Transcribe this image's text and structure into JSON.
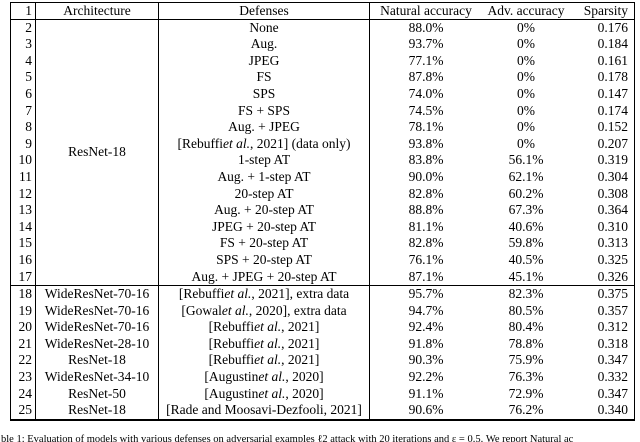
{
  "colors": {
    "text": "#000000",
    "background": "#ffffff",
    "border": "#000000"
  },
  "table": {
    "header": {
      "num": "1",
      "architecture": "Architecture",
      "defenses": "Defenses",
      "natural_accuracy": "Natural accuracy",
      "adv_accuracy": "Adv. accuracy",
      "sparsity": "Sparsity"
    },
    "sections": [
      {
        "merged_architecture": "ResNet-18",
        "rows": [
          {
            "num": "2",
            "defense": "None",
            "natural": "88.0%",
            "adv": "0%",
            "sparsity": "0.176"
          },
          {
            "num": "3",
            "defense": "Aug.",
            "natural": "93.7%",
            "adv": "0%",
            "sparsity": "0.184"
          },
          {
            "num": "4",
            "defense": "JPEG",
            "natural": "77.1%",
            "adv": "0%",
            "sparsity": "0.161"
          },
          {
            "num": "5",
            "defense": "FS",
            "natural": "87.8%",
            "adv": "0%",
            "sparsity": "0.178"
          },
          {
            "num": "6",
            "defense": "SPS",
            "natural": "74.0%",
            "adv": "0%",
            "sparsity": "0.147"
          },
          {
            "num": "7",
            "defense": "FS + SPS",
            "natural": "74.5%",
            "adv": "0%",
            "sparsity": "0.174"
          },
          {
            "num": "8",
            "defense": "Aug. + JPEG",
            "natural": "78.1%",
            "adv": "0%",
            "sparsity": "0.152"
          },
          {
            "num": "9",
            "defense": "[Rebuffi et al., 2021] (data only)",
            "natural": "93.8%",
            "adv": "0%",
            "sparsity": "0.207"
          },
          {
            "num": "10",
            "defense": "1-step AT",
            "natural": "83.8%",
            "adv": "56.1%",
            "sparsity": "0.319"
          },
          {
            "num": "11",
            "defense": "Aug. + 1-step AT",
            "natural": "90.0%",
            "adv": "62.1%",
            "sparsity": "0.304"
          },
          {
            "num": "12",
            "defense": "20-step AT",
            "natural": "82.8%",
            "adv": "60.2%",
            "sparsity": "0.308"
          },
          {
            "num": "13",
            "defense": "Aug. + 20-step AT",
            "natural": "88.8%",
            "adv": "67.3%",
            "sparsity": "0.364"
          },
          {
            "num": "14",
            "defense": "JPEG + 20-step AT",
            "natural": "81.1%",
            "adv": "40.6%",
            "sparsity": "0.310"
          },
          {
            "num": "15",
            "defense": "FS + 20-step AT",
            "natural": "82.8%",
            "adv": "59.8%",
            "sparsity": "0.313"
          },
          {
            "num": "16",
            "defense": "SPS + 20-step AT",
            "natural": "76.1%",
            "adv": "40.5%",
            "sparsity": "0.325"
          },
          {
            "num": "17",
            "defense": "Aug. + JPEG + 20-step AT",
            "natural": "87.1%",
            "adv": "45.1%",
            "sparsity": "0.326"
          }
        ]
      },
      {
        "rows": [
          {
            "num": "18",
            "architecture": "WideResNet-70-16",
            "defense": "[Rebuffi et al., 2021], extra data",
            "natural": "95.7%",
            "adv": "82.3%",
            "sparsity": "0.375"
          },
          {
            "num": "19",
            "architecture": "WideResNet-70-16",
            "defense": "[Gowal et al., 2020], extra data",
            "natural": "94.7%",
            "adv": "80.5%",
            "sparsity": "0.357"
          },
          {
            "num": "20",
            "architecture": "WideResNet-70-16",
            "defense": "[Rebuffi et al., 2021]",
            "natural": "92.4%",
            "adv": "80.4%",
            "sparsity": "0.312"
          },
          {
            "num": "21",
            "architecture": "WideResNet-28-10",
            "defense": "[Rebuffi et al., 2021]",
            "natural": "91.8%",
            "adv": "78.8%",
            "sparsity": "0.318"
          },
          {
            "num": "22",
            "architecture": "ResNet-18",
            "defense": "[Rebuffi et al., 2021]",
            "natural": "90.3%",
            "adv": "75.9%",
            "sparsity": "0.347"
          },
          {
            "num": "23",
            "architecture": "WideResNet-34-10",
            "defense": "[Augustin et al., 2020]",
            "natural": "92.2%",
            "adv": "76.3%",
            "sparsity": "0.332"
          },
          {
            "num": "24",
            "architecture": "ResNet-50",
            "defense": "[Augustin et al., 2020]",
            "natural": "91.1%",
            "adv": "72.9%",
            "sparsity": "0.347"
          },
          {
            "num": "25",
            "architecture": "ResNet-18",
            "defense": "[Rade and Moosavi-Dezfooli, 2021]",
            "natural": "90.6%",
            "adv": "76.2%",
            "sparsity": "0.340"
          }
        ]
      }
    ]
  },
  "caption": "ble 1: Evaluation of models with various defenses on adversarial examples ℓ2 attack with 20 iterations and ε = 0.5. We report Natural ac"
}
